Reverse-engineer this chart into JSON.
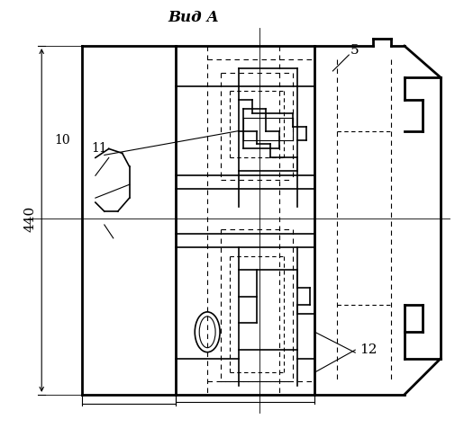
{
  "title": "Вид А",
  "label_440": "440",
  "label_5": "5",
  "label_10": "10",
  "label_11": "11",
  "label_12": "12",
  "bg_color": "#ffffff",
  "line_color": "#000000",
  "figsize": [
    5.15,
    4.86
  ],
  "dpi": 100
}
